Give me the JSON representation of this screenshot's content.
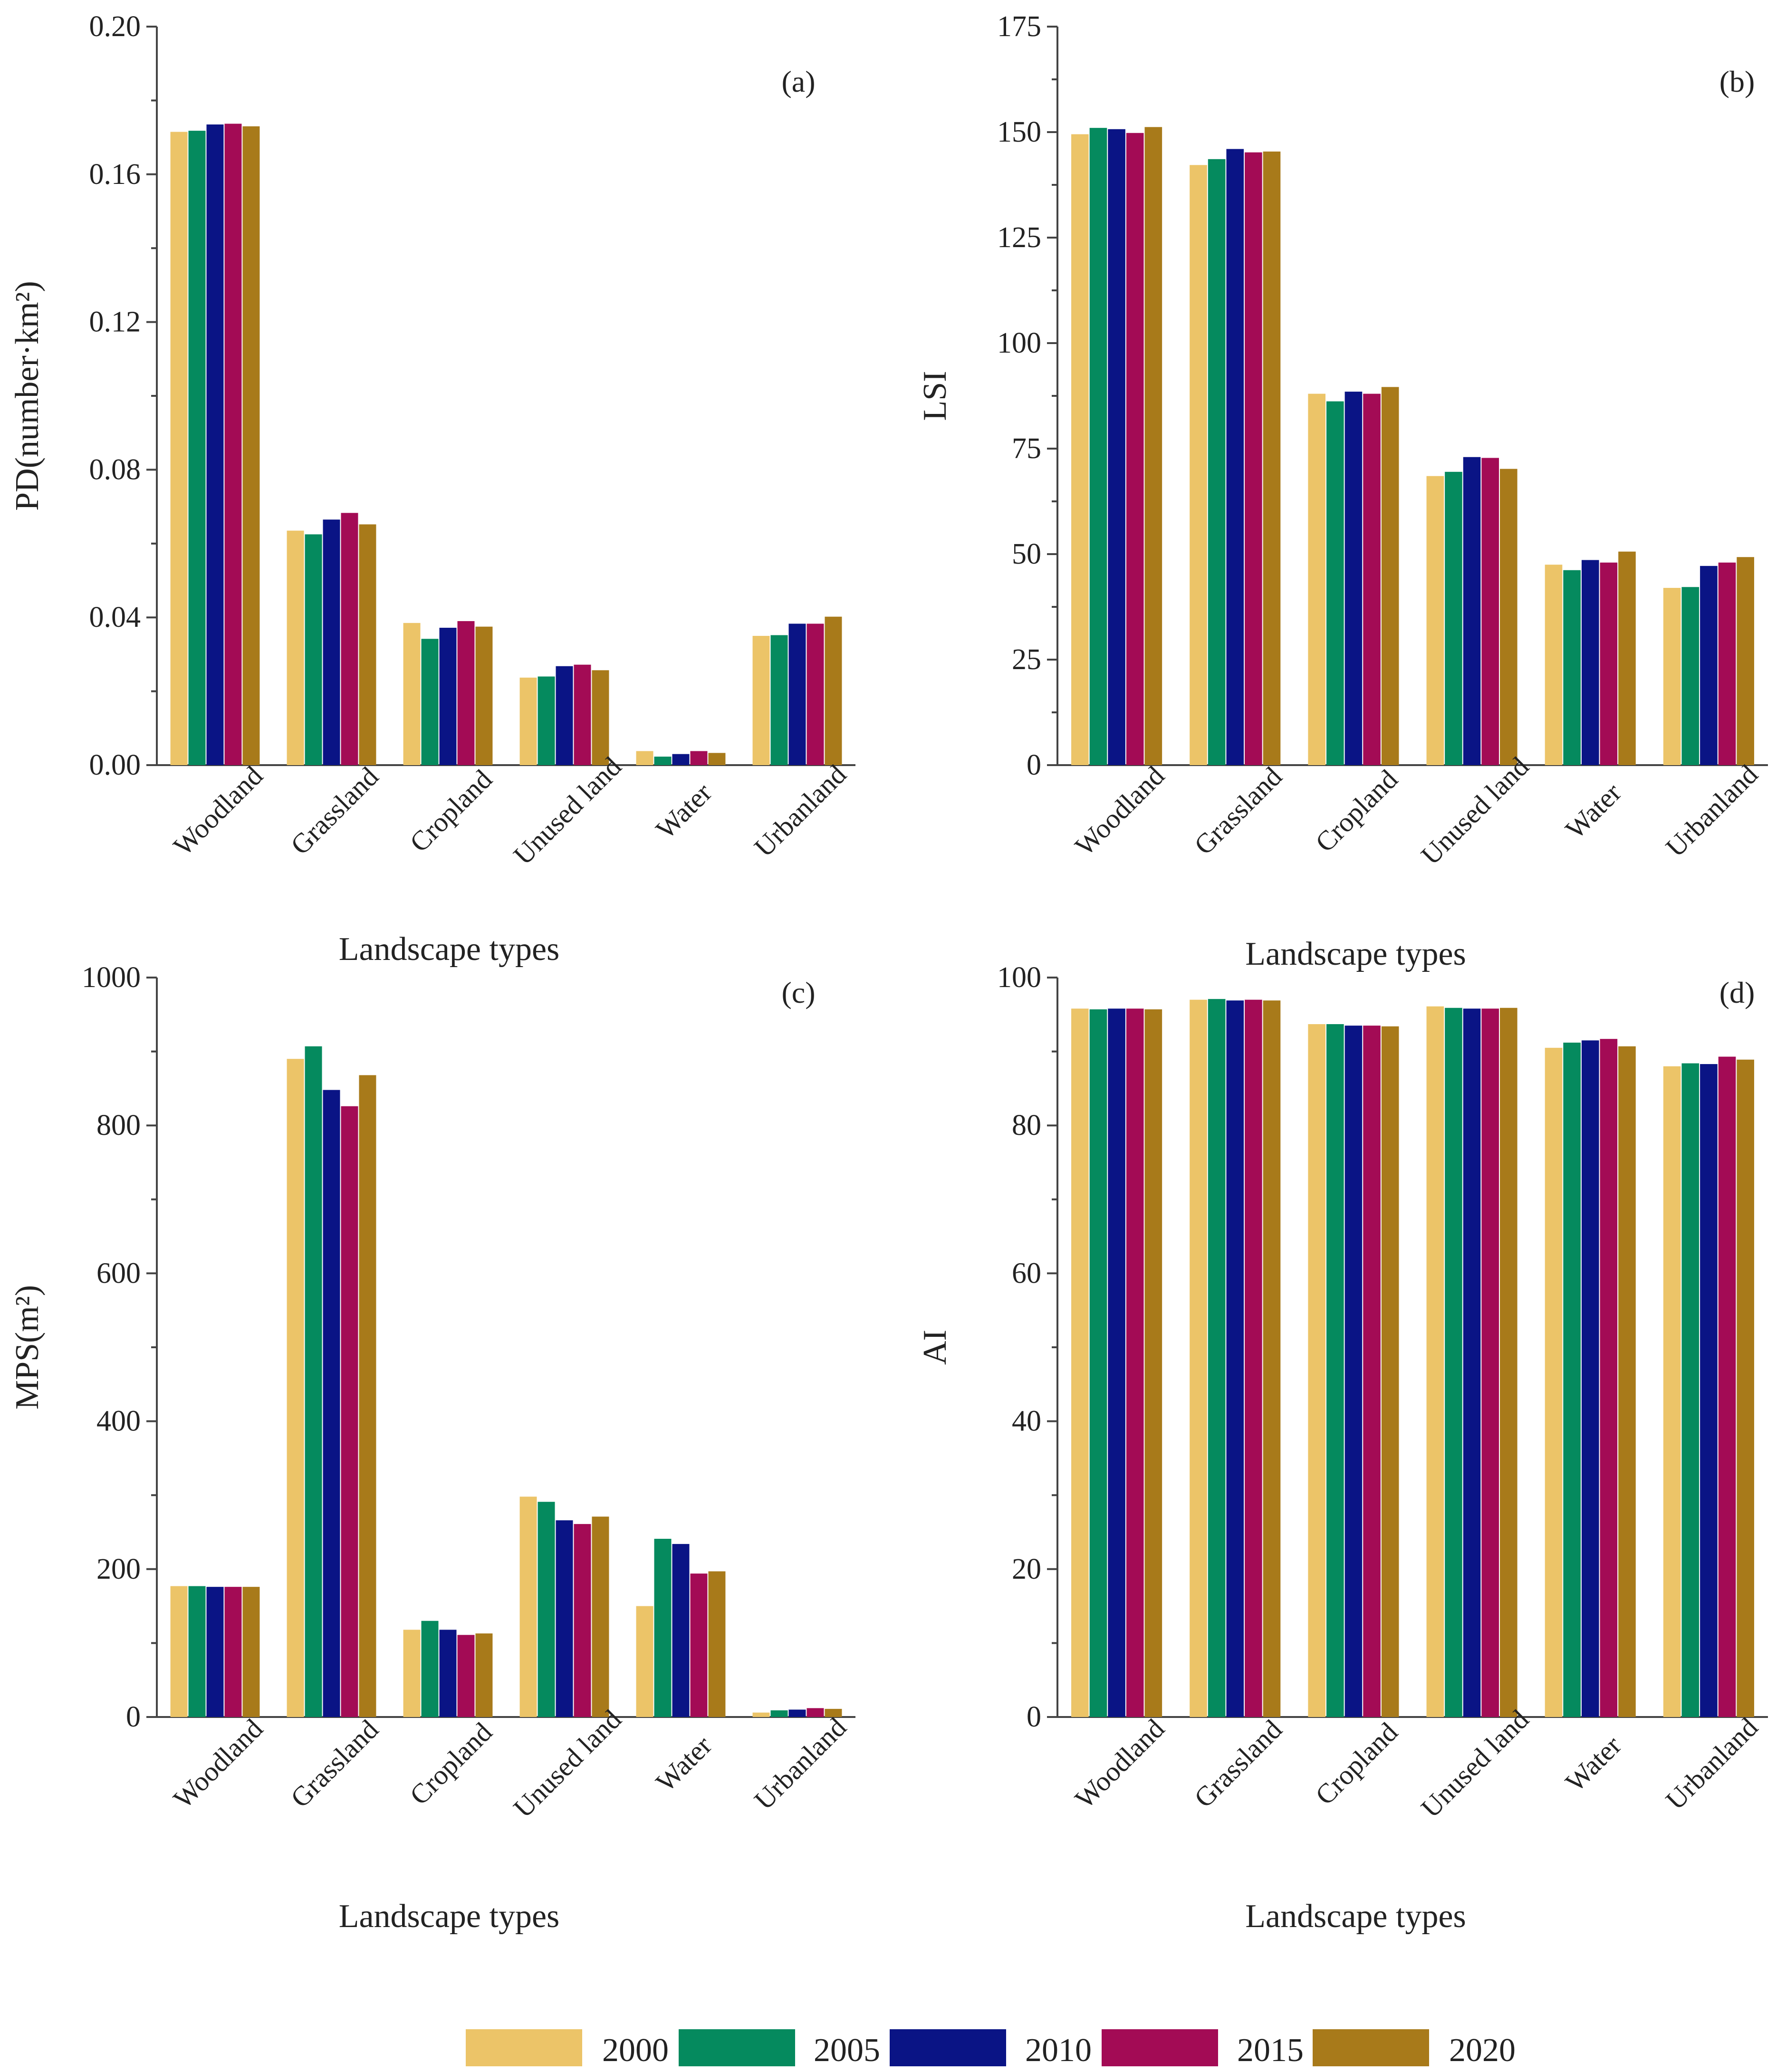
{
  "legend": {
    "items": [
      {
        "label": "2000",
        "color": "#ECC468"
      },
      {
        "label": "2005",
        "color": "#058A5E"
      },
      {
        "label": "2010",
        "color": "#0A1485"
      },
      {
        "label": "2015",
        "color": "#A30B55"
      },
      {
        "label": "2020",
        "color": "#A87A1A"
      }
    ]
  },
  "chart_data": [
    {
      "id": "a",
      "type": "bar",
      "panel_label": "(a)",
      "ylabel": "PD(number·km²)",
      "xlabel": "Landscape types",
      "ylim": [
        0,
        0.2
      ],
      "yticks": [
        "0.00",
        "0.04",
        "0.08",
        "0.12",
        "0.16",
        "0.20"
      ],
      "categories": [
        "Woodland",
        "Grassland",
        "Cropland",
        "Unused land",
        "Water",
        "Urbanland"
      ],
      "series": [
        {
          "name": "2000",
          "values": [
            0.1715,
            0.0635,
            0.0385,
            0.0237,
            0.0038,
            0.035
          ]
        },
        {
          "name": "2005",
          "values": [
            0.1718,
            0.0625,
            0.0342,
            0.024,
            0.0023,
            0.0352
          ]
        },
        {
          "name": "2010",
          "values": [
            0.1735,
            0.0665,
            0.0372,
            0.0268,
            0.003,
            0.0383
          ]
        },
        {
          "name": "2015",
          "values": [
            0.1737,
            0.0683,
            0.039,
            0.0272,
            0.0038,
            0.0383
          ]
        },
        {
          "name": "2020",
          "values": [
            0.173,
            0.0652,
            0.0375,
            0.0257,
            0.0033,
            0.0402
          ]
        }
      ]
    },
    {
      "id": "b",
      "type": "bar",
      "panel_label": "(b)",
      "ylabel": "LSI",
      "xlabel": "Landscape types",
      "ylim": [
        0,
        175
      ],
      "yticks": [
        "0",
        "25",
        "50",
        "75",
        "100",
        "125",
        "150",
        "175"
      ],
      "categories": [
        "Woodland",
        "Grassland",
        "Cropland",
        "Unused land",
        "Water",
        "Urbanland"
      ],
      "series": [
        {
          "name": "2000",
          "values": [
            149.5,
            142.2,
            88.0,
            68.5,
            47.5,
            42.0
          ]
        },
        {
          "name": "2005",
          "values": [
            151.0,
            143.6,
            86.2,
            69.5,
            46.2,
            42.2
          ]
        },
        {
          "name": "2010",
          "values": [
            150.7,
            146.0,
            88.5,
            73.0,
            48.6,
            47.2
          ]
        },
        {
          "name": "2015",
          "values": [
            149.8,
            145.2,
            88.0,
            72.8,
            48.0,
            48.0
          ]
        },
        {
          "name": "2020",
          "values": [
            151.2,
            145.4,
            89.6,
            70.2,
            50.6,
            49.3
          ]
        }
      ]
    },
    {
      "id": "c",
      "type": "bar",
      "panel_label": "(c)",
      "ylabel": "MPS(m²)",
      "xlabel": "Landscape types",
      "ylim": [
        0,
        1000
      ],
      "yticks": [
        "0",
        "200",
        "400",
        "600",
        "800",
        "1000"
      ],
      "categories": [
        "Woodland",
        "Grassland",
        "Cropland",
        "Unused land",
        "Water",
        "Urbanland"
      ],
      "series": [
        {
          "name": "2000",
          "values": [
            177,
            890,
            118,
            298,
            150,
            6
          ]
        },
        {
          "name": "2005",
          "values": [
            177,
            907,
            130,
            291,
            241,
            9
          ]
        },
        {
          "name": "2010",
          "values": [
            176,
            848,
            118,
            266,
            234,
            10
          ]
        },
        {
          "name": "2015",
          "values": [
            176,
            826,
            111,
            261,
            194,
            12
          ]
        },
        {
          "name": "2020",
          "values": [
            176,
            868,
            113,
            271,
            197,
            11
          ]
        }
      ]
    },
    {
      "id": "d",
      "type": "bar",
      "panel_label": "(d)",
      "ylabel": "AI",
      "xlabel": "Landscape types",
      "ylim": [
        0,
        100
      ],
      "yticks": [
        "0",
        "20",
        "40",
        "60",
        "80",
        "100"
      ],
      "categories": [
        "Woodland",
        "Grassland",
        "Cropland",
        "Unused land",
        "Water",
        "Urbanland"
      ],
      "series": [
        {
          "name": "2000",
          "values": [
            95.8,
            97.0,
            93.7,
            96.1,
            90.5,
            88.0
          ]
        },
        {
          "name": "2005",
          "values": [
            95.7,
            97.1,
            93.7,
            95.9,
            91.2,
            88.4
          ]
        },
        {
          "name": "2010",
          "values": [
            95.8,
            96.9,
            93.5,
            95.8,
            91.5,
            88.3
          ]
        },
        {
          "name": "2015",
          "values": [
            95.8,
            97.0,
            93.5,
            95.8,
            91.7,
            89.3
          ]
        },
        {
          "name": "2020",
          "values": [
            95.7,
            96.9,
            93.4,
            95.9,
            90.7,
            88.9
          ]
        }
      ]
    }
  ]
}
